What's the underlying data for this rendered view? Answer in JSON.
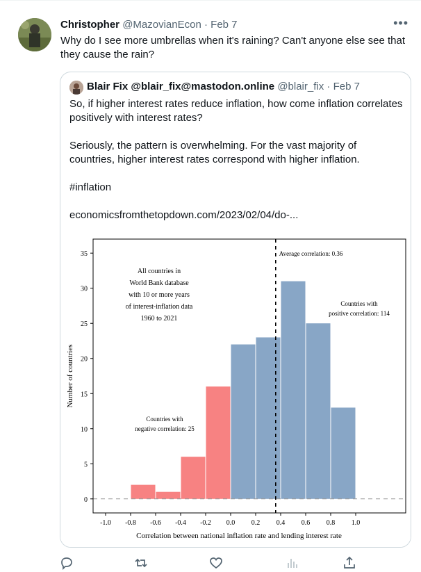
{
  "tweet": {
    "author_name": "Christopher",
    "handle": "@MazovianEcon",
    "sep": " · ",
    "date": "Feb 7",
    "more_label": "•••",
    "text": "Why do I see more umbrellas when it's raining? Can't anyone else see that they cause the rain?"
  },
  "quote": {
    "author_name": "Blair Fix @blair_fix@mastodon.online",
    "handle": "@blair_fix",
    "sep": " · ",
    "date": "Feb 7",
    "para1": "So, if higher interest rates reduce inflation, how come inflation correlates positively with interest rates?",
    "para2": "Seriously, the pattern is overwhelming. For the vast majority of countries, higher interest rates correspond with higher inflation.",
    "hashtag": "#inflation",
    "link": "economicsfromthetopdown.com/2023/02/04/do-..."
  },
  "chart_data": {
    "type": "bar",
    "bins": [
      -0.8,
      -0.6,
      -0.4,
      -0.2,
      0.0,
      0.2,
      0.4,
      0.6,
      0.8
    ],
    "bin_width": 0.2,
    "values": [
      2,
      1,
      6,
      16,
      22,
      23,
      31,
      25,
      13
    ],
    "colors": [
      "#f78282",
      "#f78282",
      "#f78282",
      "#f78282",
      "#88a6c6",
      "#88a6c6",
      "#88a6c6",
      "#88a6c6",
      "#88a6c6"
    ],
    "xlabel": "Correlation between national inflation rate and lending interest rate",
    "ylabel": "Number of countries",
    "xlim": [
      -1.1,
      1.4
    ],
    "ylim": [
      -2,
      37
    ],
    "xticks": [
      -1.0,
      -0.8,
      -0.6,
      -0.4,
      -0.2,
      0.0,
      0.2,
      0.4,
      0.6,
      0.8,
      1.0
    ],
    "xtick_labels": [
      "-1.0",
      "-0.8",
      "-0.6",
      "-0.4",
      "-0.2",
      "0.0",
      "0.2",
      "0.4",
      "0.6",
      "0.8",
      "1.0"
    ],
    "yticks": [
      0,
      5,
      10,
      15,
      20,
      25,
      30,
      35
    ],
    "ytick_labels": [
      "0",
      "5",
      "10",
      "15",
      "20",
      "25",
      "30",
      "35"
    ],
    "average_correlation": 0.36,
    "average_label": "Average correlation: 0.36",
    "info_lines": [
      "All countries in",
      "World Bank database",
      "with 10 or more years",
      "of interest-inflation data",
      "1960 to 2021"
    ],
    "positive_lines": [
      "Countries with",
      "positive correlation: 114"
    ],
    "negative_lines": [
      "Countries with",
      "negative correlation: 25"
    ],
    "grid": false,
    "negative_color": "#f78282",
    "positive_color": "#88a6c6"
  },
  "actions": {
    "reply": "reply-icon",
    "retweet": "retweet-icon",
    "like": "heart-icon",
    "views": "views-icon",
    "share": "share-icon"
  }
}
